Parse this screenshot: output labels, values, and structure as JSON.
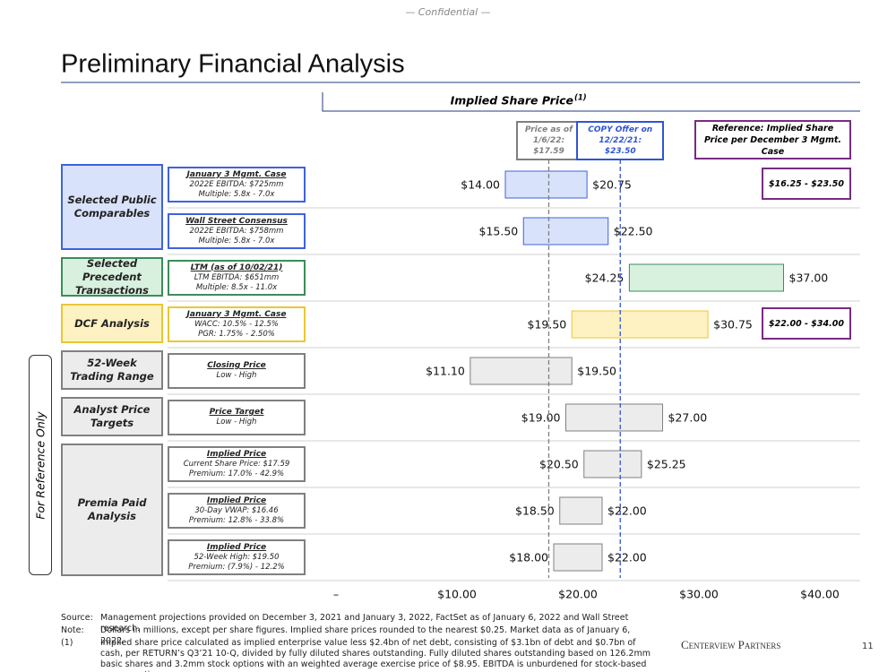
{
  "header": {
    "confidential": "— Confidential —",
    "title": "Preliminary Financial Analysis"
  },
  "side_label": "For Reference Only",
  "chart_data": {
    "type": "range_bar",
    "title": "Implied Share Price",
    "title_note": "(1)",
    "xlim": [
      0,
      40
    ],
    "xticks": [
      {
        "value": 0,
        "label": "–"
      },
      {
        "value": 10,
        "label": "$10.00"
      },
      {
        "value": 20,
        "label": "$20.00"
      },
      {
        "value": 30,
        "label": "$30.00"
      },
      {
        "value": 40,
        "label": "$40.00"
      }
    ],
    "reference_header": "Reference: Implied Share Price per December 3 Mgmt. Case",
    "reference_lines": [
      {
        "lines": [
          "Price as of",
          "1/6/22:"
        ],
        "value": 17.59,
        "value_label": "$17.59",
        "color": "#7f7f7f"
      },
      {
        "lines": [
          "COPY Offer on",
          "12/22/21:"
        ],
        "value": 23.5,
        "value_label": "$23.50",
        "color": "#2f55d4"
      }
    ],
    "groups": [
      {
        "label": "Selected Public Comparables",
        "fill": "#d9e2fb",
        "border": "#3f63d9",
        "rows": [
          {
            "title": "January 3 Mgmt. Case",
            "lines": [
              "2022E EBITDA: $725mm",
              "Multiple: 5.8x - 7.0x"
            ],
            "low": 14.0,
            "high": 20.75,
            "low_label": "$14.00",
            "high_label": "$20.75",
            "reference": "$16.25 - $23.50"
          },
          {
            "title": "Wall Street Consensus",
            "lines": [
              "2022E EBITDA: $758mm",
              "Multiple: 5.8x - 7.0x"
            ],
            "low": 15.5,
            "high": 22.5,
            "low_label": "$15.50",
            "high_label": "$22.50"
          }
        ]
      },
      {
        "label": "Selected Precedent Transactions",
        "fill": "#d8f0de",
        "border": "#3c8c5a",
        "rows": [
          {
            "title": "LTM (as of 10/02/21)",
            "lines": [
              "LTM EBITDA: $651mm",
              "Multiple: 8.5x - 11.0x"
            ],
            "low": 24.25,
            "high": 37.0,
            "low_label": "$24.25",
            "high_label": "$37.00"
          }
        ]
      },
      {
        "label": "DCF Analysis",
        "fill": "#fff2c2",
        "border": "#e9c733",
        "rows": [
          {
            "title": "January 3 Mgmt. Case",
            "lines": [
              "WACC: 10.5% - 12.5%",
              "PGR: 1.75% - 2.50%"
            ],
            "low": 19.5,
            "high": 30.75,
            "low_label": "$19.50",
            "high_label": "$30.75",
            "reference": "$22.00 - $34.00"
          }
        ]
      },
      {
        "label": "52-Week Trading Range",
        "fill": "#ececec",
        "border": "#808080",
        "rows": [
          {
            "title": "Closing Price",
            "lines": [
              "Low - High"
            ],
            "low": 11.1,
            "high": 19.5,
            "low_label": "$11.10",
            "high_label": "$19.50"
          }
        ]
      },
      {
        "label": "Analyst Price Targets",
        "fill": "#ececec",
        "border": "#808080",
        "rows": [
          {
            "title": "Price Target",
            "lines": [
              "Low - High"
            ],
            "low": 19.0,
            "high": 27.0,
            "low_label": "$19.00",
            "high_label": "$27.00"
          }
        ]
      },
      {
        "label": "Premia Paid Analysis",
        "fill": "#ececec",
        "border": "#808080",
        "rows": [
          {
            "title": "Implied Price",
            "lines": [
              "Current Share Price: $17.59",
              "Premium: 17.0% - 42.9%"
            ],
            "low": 20.5,
            "high": 25.25,
            "low_label": "$20.50",
            "high_label": "$25.25"
          },
          {
            "title": "Implied Price",
            "lines": [
              "30-Day VWAP: $16.46",
              "Premium: 12.8% - 33.8%"
            ],
            "low": 18.5,
            "high": 22.0,
            "low_label": "$18.50",
            "high_label": "$22.00"
          },
          {
            "title": "Implied Price",
            "lines": [
              "52-Week High: $19.50",
              "Premium: (7.9%) - 12.2%"
            ],
            "low": 18.0,
            "high": 22.0,
            "low_label": "$18.00",
            "high_label": "$22.00"
          }
        ]
      }
    ]
  },
  "footnotes": [
    {
      "label": "Source:",
      "text": "Management projections provided on December 3, 2021 and January 3, 2022, FactSet as of January 6, 2022 and Wall Street research."
    },
    {
      "label": "Note:",
      "text": "Dollars in millions, except per share figures. Implied share prices rounded to the nearest $0.25. Market data as of January 6, 2022."
    },
    {
      "label": "(1)",
      "text": "Implied share price calculated as implied enterprise value less $2.4bn of net debt, consisting of $3.1bn of debt and $0.7bn of cash, per RETURN’s Q3’21 10-Q, divided by fully diluted shares outstanding. Fully diluted shares outstanding based on 126.2mm basic shares and 3.2mm stock options with an weighted average exercise price of $8.95. EBITDA is unburdened for stock-based compensation."
    }
  ],
  "footer": {
    "logo": "Centerview Partners",
    "page": "11"
  }
}
